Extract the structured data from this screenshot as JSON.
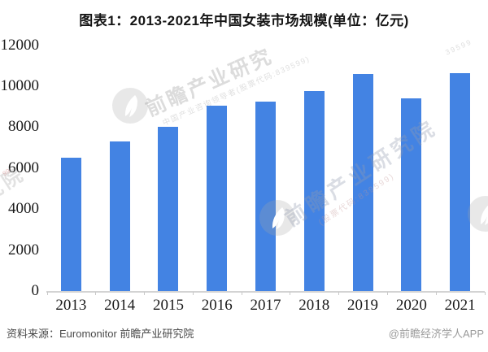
{
  "title": "图表1：2013-2021年中国女装市场规模(单位：亿元)",
  "chart_data": {
    "type": "bar",
    "title": "图表1：2013-2021年中国女装市场规模(单位：亿元)",
    "unit": "亿元",
    "categories": [
      "2013",
      "2014",
      "2015",
      "2016",
      "2017",
      "2018",
      "2019",
      "2020",
      "2021"
    ],
    "values": [
      6500,
      7300,
      8000,
      9050,
      9250,
      9750,
      10600,
      9400,
      10650
    ],
    "ylim": [
      0,
      12000
    ],
    "ytick_step": 2000,
    "ytick_labels": [
      "0",
      "2000",
      "4000",
      "6000",
      "8000",
      "10000",
      "12000"
    ],
    "grid": false,
    "legend": "none",
    "bar_color": "#4383e3",
    "axis_color": "#d3d3d3"
  },
  "footer": {
    "source": "资料来源：Euromonitor 前瞻产业研究院",
    "credit": "@前瞻经济学人APP"
  },
  "watermark": {
    "brand": "前瞻产业研究",
    "brand_full": "前瞻产业研究院",
    "tagline": "中国产业咨询领导者(股票代码:839599)",
    "stock_code": "(股票代码:839599)",
    "code_fragment": "39599",
    "edge_fragment": "究院",
    "edge_code": "99"
  }
}
